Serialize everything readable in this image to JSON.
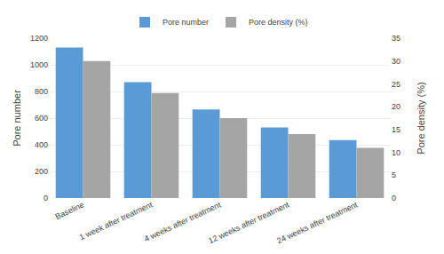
{
  "chart_data": {
    "type": "bar",
    "categories": [
      "Baseline",
      "1 week after treatment",
      "4 weeks after treatment",
      "12 weeks after treatment",
      "24 weeks after treatment"
    ],
    "series": [
      {
        "name": "Pore number",
        "color": "#5B9BD5",
        "values": [
          1130,
          870,
          665,
          530,
          435
        ]
      },
      {
        "name": "Pore density (%)",
        "color": "#A5A5A5",
        "values": [
          30.0,
          23.0,
          17.5,
          14.0,
          11.0
        ],
        "axis": "y2"
      }
    ],
    "ylabel": "Pore number",
    "y2label": "Pore density (%)",
    "ylim": [
      0,
      1200
    ],
    "yticks": [
      0,
      200,
      400,
      600,
      800,
      1000,
      1200
    ],
    "y2lim": [
      0,
      35
    ],
    "y2ticks": [
      0,
      5,
      10,
      15,
      20,
      25,
      30,
      35
    ],
    "grid": true,
    "legend": "top"
  }
}
